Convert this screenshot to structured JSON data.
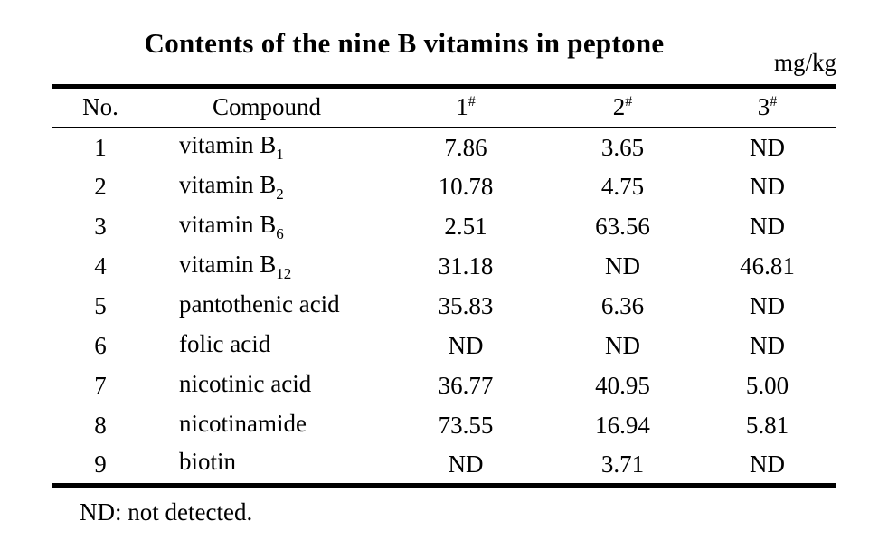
{
  "title": "Contents of the nine B vitamins in peptone",
  "unit": "mg/kg",
  "colors": {
    "text": "#000000",
    "rule": "#000000",
    "background": "#ffffff"
  },
  "table": {
    "headers": {
      "no": "No.",
      "compound": "Compound",
      "samples": [
        {
          "label": "1",
          "sup": "#"
        },
        {
          "label": "2",
          "sup": "#"
        },
        {
          "label": "3",
          "sup": "#"
        }
      ]
    },
    "rows": [
      {
        "no": "1",
        "compound": "vitamin B",
        "sub": "1",
        "v1": "7.86",
        "v2": "3.65",
        "v3": "ND"
      },
      {
        "no": "2",
        "compound": "vitamin B",
        "sub": "2",
        "v1": "10.78",
        "v2": "4.75",
        "v3": "ND"
      },
      {
        "no": "3",
        "compound": "vitamin B",
        "sub": "6",
        "v1": "2.51",
        "v2": "63.56",
        "v3": "ND"
      },
      {
        "no": "4",
        "compound": "vitamin B",
        "sub": "12",
        "v1": "31.18",
        "v2": "ND",
        "v3": "46.81"
      },
      {
        "no": "5",
        "compound": "pantothenic acid",
        "sub": "",
        "v1": "35.83",
        "v2": "6.36",
        "v3": "ND"
      },
      {
        "no": "6",
        "compound": "folic acid",
        "sub": "",
        "v1": "ND",
        "v2": "ND",
        "v3": "ND"
      },
      {
        "no": "7",
        "compound": "nicotinic acid",
        "sub": "",
        "v1": "36.77",
        "v2": "40.95",
        "v3": "5.00"
      },
      {
        "no": "8",
        "compound": "nicotinamide",
        "sub": "",
        "v1": "73.55",
        "v2": "16.94",
        "v3": "5.81"
      },
      {
        "no": "9",
        "compound": "biotin",
        "sub": "",
        "v1": "ND",
        "v2": "3.71",
        "v3": "ND"
      }
    ]
  },
  "footnote": "ND: not detected."
}
